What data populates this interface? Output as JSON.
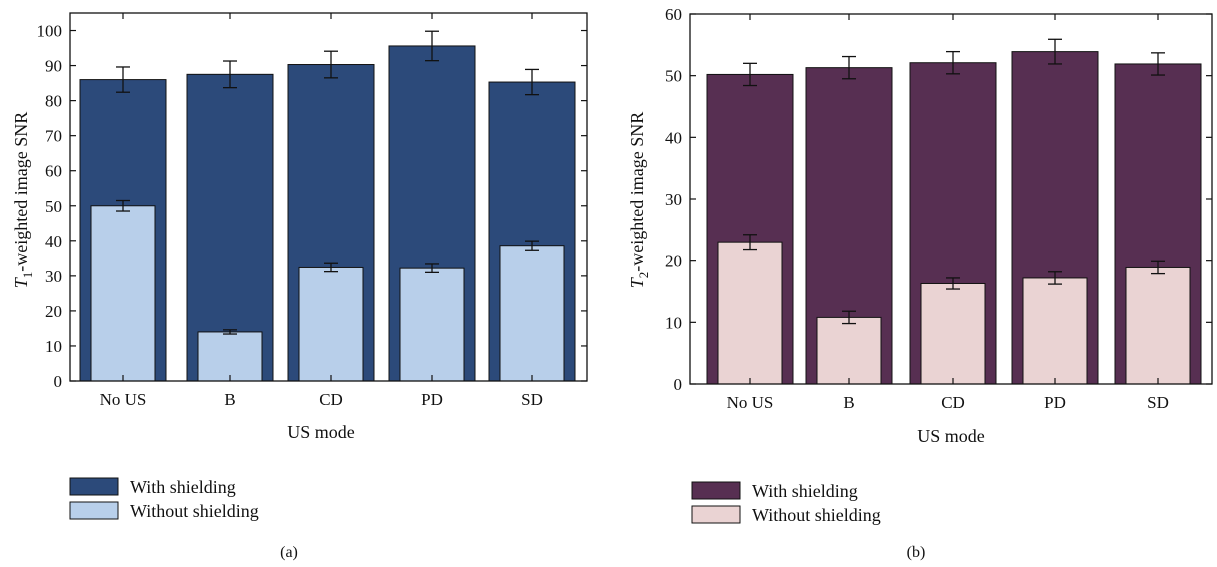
{
  "chart_data": [
    {
      "type": "bar",
      "panel_label": "(a)",
      "xlabel": "US mode",
      "ylabel_parts": [
        "T",
        "1",
        "-weighted image SNR"
      ],
      "ylim": [
        0,
        105
      ],
      "yticks": [
        0,
        10,
        20,
        30,
        40,
        50,
        60,
        70,
        80,
        90,
        100
      ],
      "categories": [
        "No US",
        "B",
        "CD",
        "PD",
        "SD"
      ],
      "series": [
        {
          "name": "With shielding",
          "color": "#2c4a7a",
          "values": [
            86,
            87.5,
            90.3,
            95.6,
            85.3
          ],
          "errors": [
            3.6,
            3.8,
            3.8,
            4.2,
            3.6
          ]
        },
        {
          "name": "Without shielding",
          "color": "#b8cfea",
          "values": [
            50,
            14,
            32.4,
            32.2,
            38.6
          ],
          "errors": [
            1.5,
            0.6,
            1.2,
            1.2,
            1.3
          ]
        }
      ],
      "legend_position": "bottom-left"
    },
    {
      "type": "bar",
      "panel_label": "(b)",
      "xlabel": "US mode",
      "ylabel_parts": [
        "T",
        "2",
        "-weighted image SNR"
      ],
      "ylim": [
        0,
        60
      ],
      "yticks": [
        0,
        10,
        20,
        30,
        40,
        50,
        60
      ],
      "categories": [
        "No US",
        "B",
        "CD",
        "PD",
        "SD"
      ],
      "series": [
        {
          "name": "With shielding",
          "color": "#572f52",
          "values": [
            50.2,
            51.3,
            52.1,
            53.9,
            51.9
          ],
          "errors": [
            1.8,
            1.8,
            1.8,
            2.0,
            1.8
          ]
        },
        {
          "name": "Without shielding",
          "color": "#ead3d3",
          "values": [
            23,
            10.8,
            16.3,
            17.2,
            18.9
          ],
          "errors": [
            1.2,
            1.0,
            0.9,
            1.0,
            1.0
          ]
        }
      ],
      "legend_position": "bottom-left"
    }
  ]
}
